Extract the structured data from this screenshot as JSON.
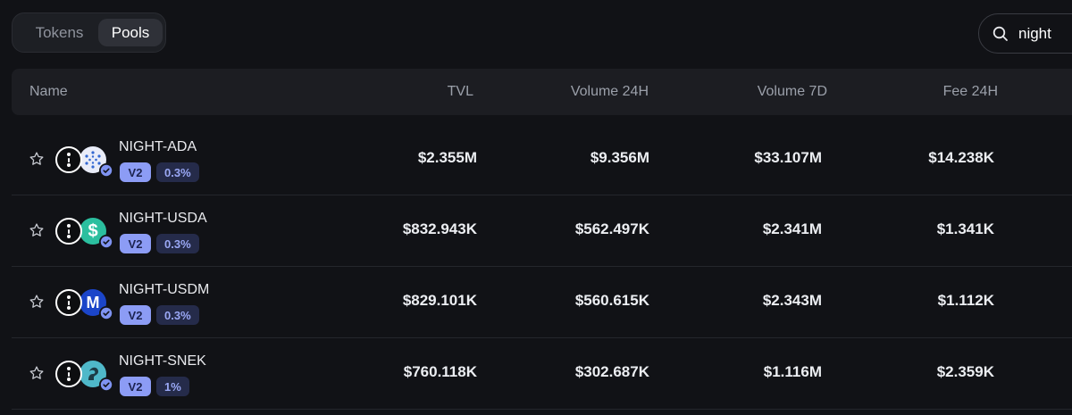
{
  "tabs": {
    "tokens": "Tokens",
    "pools": "Pools",
    "active": "Pools"
  },
  "search": {
    "value": "night"
  },
  "table": {
    "headers": {
      "name": "Name",
      "tvl": "TVL",
      "volume_24h": "Volume 24H",
      "volume_7d": "Volume 7D",
      "fee_24h": "Fee 24H"
    },
    "rows": [
      {
        "pair": "NIGHT-ADA",
        "version": "V2",
        "fee_tier": "0.3%",
        "tvl": "$2.355M",
        "volume_24h": "$9.356M",
        "volume_7d": "$33.107M",
        "fee_24h": "$14.238K",
        "token2_icon": "cardano-icon",
        "token2_color": "#e9ecf8"
      },
      {
        "pair": "NIGHT-USDA",
        "version": "V2",
        "fee_tier": "0.3%",
        "tvl": "$832.943K",
        "volume_24h": "$562.497K",
        "volume_7d": "$2.341M",
        "fee_24h": "$1.341K",
        "token2_icon": "usda-icon",
        "token2_color": "#2bbf9f"
      },
      {
        "pair": "NIGHT-USDM",
        "version": "V2",
        "fee_tier": "0.3%",
        "tvl": "$829.101K",
        "volume_24h": "$560.615K",
        "volume_7d": "$2.343M",
        "fee_24h": "$1.112K",
        "token2_icon": "usdm-icon",
        "token2_color": "#1b45c9"
      },
      {
        "pair": "NIGHT-SNEK",
        "version": "V2",
        "fee_tier": "1%",
        "tvl": "$760.118K",
        "volume_24h": "$302.687K",
        "volume_7d": "$1.116M",
        "fee_24h": "$2.359K",
        "token2_icon": "snek-icon",
        "token2_color": "#4fb8c9"
      }
    ]
  },
  "colors": {
    "accent": "#8c9cf5",
    "background": "#111216",
    "verified": "#7f93f2"
  }
}
